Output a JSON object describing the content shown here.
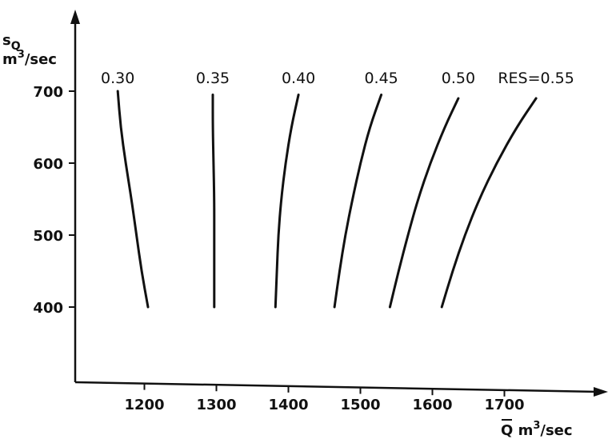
{
  "chart_data": {
    "type": "line",
    "xlabel": "Q m",
    "xlabel_superscript": "3",
    "xlabel_suffix": "/sec",
    "ylabel_top": "s",
    "ylabel_top_subscript": "Q",
    "ylabel": "m",
    "ylabel_superscript": "3",
    "ylabel_suffix": "/sec",
    "xlim": [
      1100,
      1900
    ],
    "ylim": [
      300,
      800
    ],
    "x_ticks": [
      1200,
      1300,
      1400,
      1500,
      1600,
      1700
    ],
    "y_ticks": [
      400,
      500,
      600,
      700
    ],
    "grid": false,
    "series": [
      {
        "name": "0.30",
        "points": [
          [
            1163,
            700
          ],
          [
            1167,
            650
          ],
          [
            1174,
            600
          ],
          [
            1182,
            550
          ],
          [
            1189,
            500
          ],
          [
            1196,
            450
          ],
          [
            1205,
            400
          ]
        ]
      },
      {
        "name": "0.35",
        "points": [
          [
            1295,
            695
          ],
          [
            1295,
            650
          ],
          [
            1296,
            600
          ],
          [
            1297,
            550
          ],
          [
            1297,
            500
          ],
          [
            1297,
            450
          ],
          [
            1297,
            400
          ]
        ]
      },
      {
        "name": "0.40",
        "points": [
          [
            1414,
            695
          ],
          [
            1404,
            650
          ],
          [
            1396,
            600
          ],
          [
            1390,
            550
          ],
          [
            1386,
            500
          ],
          [
            1384,
            450
          ],
          [
            1382,
            400
          ]
        ]
      },
      {
        "name": "0.45",
        "points": [
          [
            1529,
            695
          ],
          [
            1513,
            650
          ],
          [
            1500,
            600
          ],
          [
            1489,
            550
          ],
          [
            1479,
            500
          ],
          [
            1471,
            450
          ],
          [
            1464,
            400
          ]
        ]
      },
      {
        "name": "0.50",
        "points": [
          [
            1636,
            690
          ],
          [
            1617,
            650
          ],
          [
            1597,
            600
          ],
          [
            1580,
            550
          ],
          [
            1566,
            500
          ],
          [
            1553,
            450
          ],
          [
            1541,
            400
          ]
        ]
      },
      {
        "name": "RES=0.55",
        "points": [
          [
            1744,
            690
          ],
          [
            1717,
            650
          ],
          [
            1689,
            600
          ],
          [
            1665,
            550
          ],
          [
            1645,
            500
          ],
          [
            1628,
            450
          ],
          [
            1613,
            400
          ]
        ]
      }
    ]
  }
}
